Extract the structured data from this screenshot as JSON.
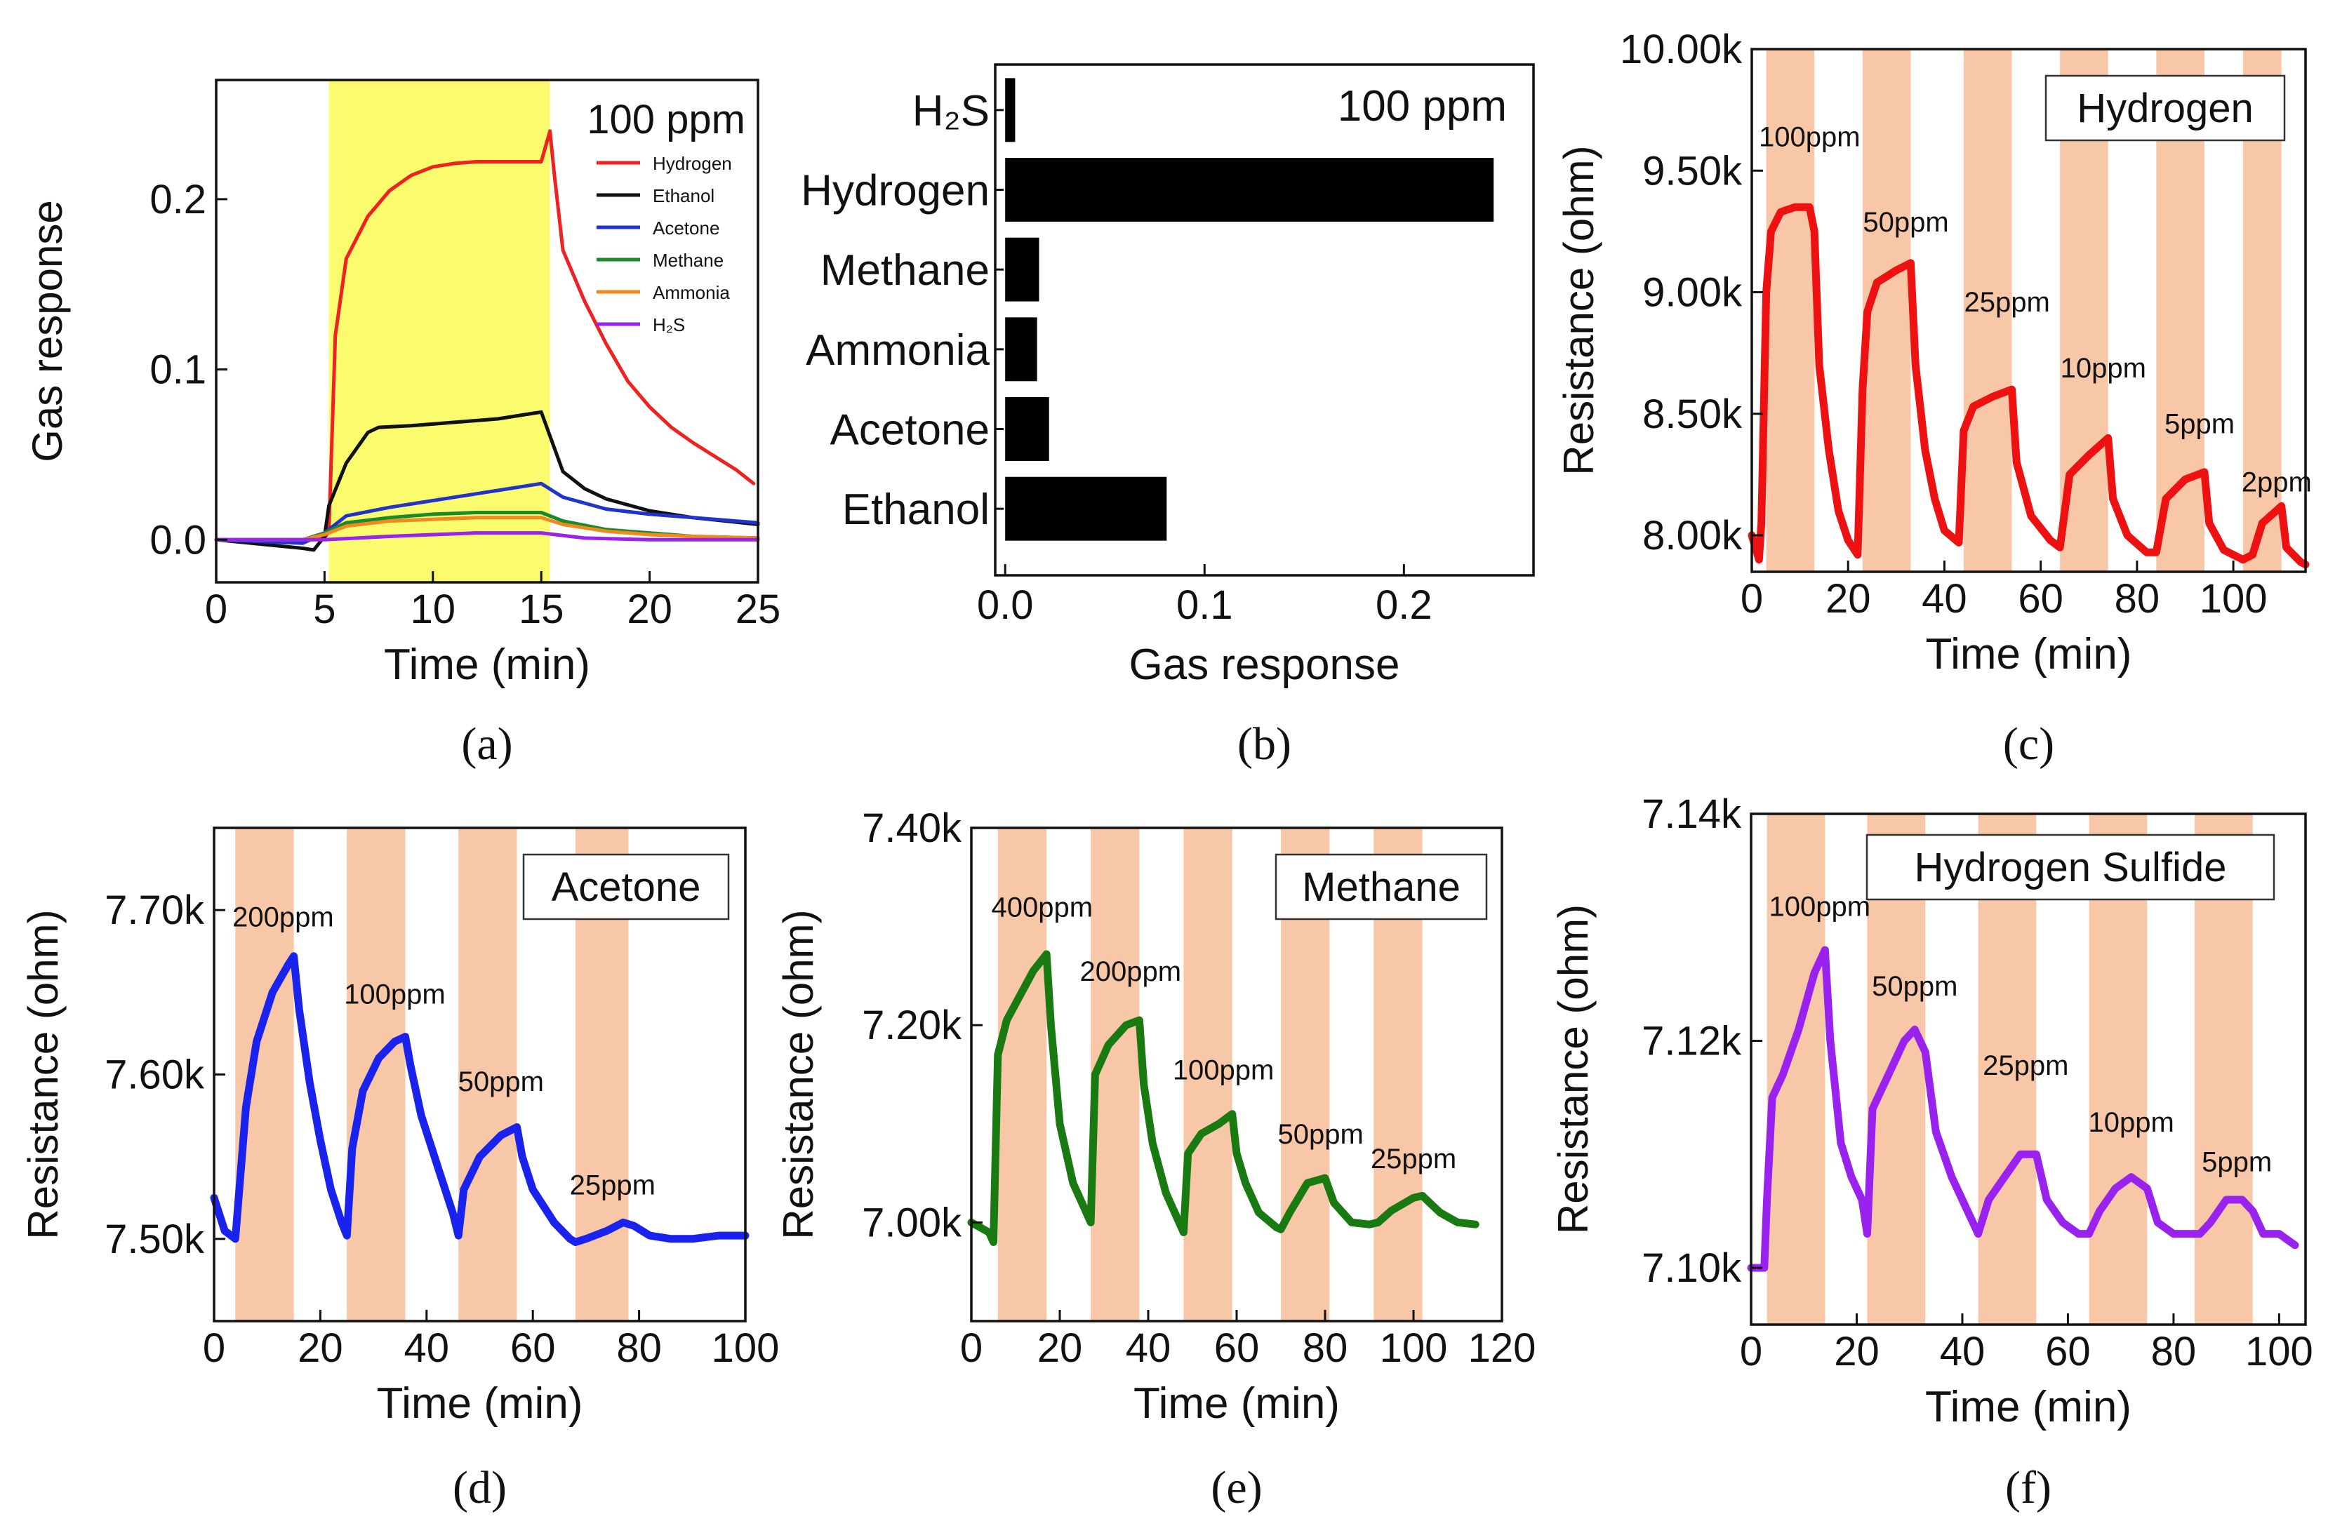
{
  "chart_data": [
    {
      "id": "a",
      "panel_label": "(a)",
      "type": "line",
      "title": "",
      "annotation": "100 ppm",
      "xlabel": "Time (min)",
      "ylabel": "Gas response",
      "xlim": [
        0,
        25
      ],
      "ylim": [
        -0.025,
        0.27
      ],
      "xticks": [
        0,
        5,
        10,
        15,
        20,
        25
      ],
      "xtick_labels": [
        "0",
        "5",
        "10",
        "15",
        "20",
        "25"
      ],
      "yticks": [
        0.0,
        0.1,
        0.2
      ],
      "ytick_labels": [
        "0.0",
        "0.1",
        "0.2"
      ],
      "highlight_region": {
        "x": [
          5.2,
          15.4
        ],
        "color": "#fbfb6e"
      },
      "legend_position": "top-right",
      "series": [
        {
          "name": "Hydrogen",
          "color": "#ee2222",
          "x": [
            0,
            4,
            5,
            5.2,
            5.5,
            6,
            7,
            8,
            9,
            10,
            11,
            12,
            13,
            14,
            15,
            15.4,
            15.6,
            16,
            17,
            18,
            19,
            20,
            21,
            22,
            23,
            24,
            24.8
          ],
          "y": [
            0.0,
            0.0,
            0.001,
            0.005,
            0.12,
            0.165,
            0.19,
            0.205,
            0.214,
            0.219,
            0.221,
            0.222,
            0.222,
            0.222,
            0.222,
            0.24,
            0.215,
            0.17,
            0.14,
            0.115,
            0.093,
            0.078,
            0.066,
            0.057,
            0.049,
            0.041,
            0.033
          ]
        },
        {
          "name": "Ethanol",
          "color": "#111111",
          "x": [
            0,
            4,
            4.5,
            5.0,
            5.2,
            6,
            7,
            7.5,
            9,
            11,
            13,
            15,
            15.2,
            16,
            17,
            18,
            20,
            22,
            25
          ],
          "y": [
            0.0,
            -0.005,
            -0.006,
            0.002,
            0.02,
            0.045,
            0.063,
            0.066,
            0.067,
            0.069,
            0.071,
            0.075,
            0.068,
            0.04,
            0.03,
            0.024,
            0.017,
            0.013,
            0.009
          ]
        },
        {
          "name": "Acetone",
          "color": "#2233cc",
          "x": [
            0,
            4,
            5,
            6,
            8,
            10,
            12,
            14,
            15,
            16,
            18,
            20,
            22,
            25
          ],
          "y": [
            0.0,
            -0.002,
            0.004,
            0.014,
            0.019,
            0.023,
            0.027,
            0.031,
            0.033,
            0.025,
            0.018,
            0.015,
            0.013,
            0.01
          ]
        },
        {
          "name": "Methane",
          "color": "#1a8a2a",
          "x": [
            0,
            4,
            5,
            6,
            8,
            10,
            12,
            15,
            16,
            18,
            20,
            22,
            25
          ],
          "y": [
            0.0,
            0.0,
            0.004,
            0.01,
            0.013,
            0.015,
            0.016,
            0.016,
            0.011,
            0.006,
            0.004,
            0.002,
            0.001
          ]
        },
        {
          "name": "Ammonia",
          "color": "#f08a1e",
          "x": [
            0,
            4,
            5,
            6,
            8,
            10,
            12,
            15,
            16,
            18,
            20,
            22,
            25
          ],
          "y": [
            0.0,
            0.0,
            0.003,
            0.008,
            0.011,
            0.012,
            0.013,
            0.013,
            0.009,
            0.005,
            0.003,
            0.002,
            0.001
          ]
        },
        {
          "name": "H₂S",
          "color": "#9922ee",
          "x": [
            0,
            5,
            8,
            12,
            15,
            17,
            20,
            25
          ],
          "y": [
            0.0,
            0.0,
            0.002,
            0.004,
            0.004,
            0.001,
            0.0,
            0.0
          ]
        }
      ]
    },
    {
      "id": "b",
      "panel_label": "(b)",
      "type": "bar",
      "orientation": "horizontal",
      "annotation": "100 ppm",
      "xlabel": "Gas response",
      "ylabel": "",
      "xlim": [
        -0.005,
        0.265
      ],
      "xticks": [
        0.0,
        0.1,
        0.2
      ],
      "xtick_labels": [
        "0.0",
        "0.1",
        "0.2"
      ],
      "categories": [
        "H₂S",
        "Hydrogen",
        "Methane",
        "Ammonia",
        "Acetone",
        "Ethanol"
      ],
      "values": [
        0.005,
        0.245,
        0.017,
        0.016,
        0.022,
        0.081
      ],
      "color": "#000000"
    },
    {
      "id": "c",
      "panel_label": "(c)",
      "type": "line",
      "annotation": "Hydrogen",
      "xlabel": "Time (min)",
      "ylabel": "Resistance (ohm)",
      "xlim": [
        0,
        115
      ],
      "ylim": [
        7850,
        10000
      ],
      "xticks": [
        0,
        20,
        40,
        60,
        80,
        100
      ],
      "xtick_labels": [
        "0",
        "20",
        "40",
        "60",
        "80",
        "100"
      ],
      "yticks": [
        8000,
        8500,
        9000,
        9500,
        10000
      ],
      "ytick_labels": [
        "8.00k",
        "8.50k",
        "9.00k",
        "9.50k",
        "10.00k"
      ],
      "color": "#ee1111",
      "exposure_windows": [
        [
          3,
          13
        ],
        [
          23,
          33
        ],
        [
          44,
          54
        ],
        [
          64,
          74
        ],
        [
          84,
          94
        ],
        [
          102,
          110
        ]
      ],
      "pulse_labels": [
        {
          "text": "100ppm",
          "x": 12,
          "y": 9600
        },
        {
          "text": "50ppm",
          "x": 32,
          "y": 9250
        },
        {
          "text": "25ppm",
          "x": 53,
          "y": 8920
        },
        {
          "text": "10ppm",
          "x": 73,
          "y": 8650
        },
        {
          "text": "5ppm",
          "x": 93,
          "y": 8420
        },
        {
          "text": "2ppm",
          "x": 109,
          "y": 8180
        }
      ],
      "x": [
        0,
        1.5,
        2,
        3,
        4,
        6,
        9,
        12,
        13,
        14,
        16,
        18,
        20,
        22,
        23,
        24,
        26,
        30,
        33,
        34,
        36,
        38,
        40,
        43,
        44,
        46,
        50,
        54,
        55,
        58,
        62,
        64,
        66,
        70,
        74,
        75,
        78,
        82,
        84,
        86,
        90,
        94,
        95,
        98,
        102,
        104,
        106,
        110,
        111,
        114,
        115
      ],
      "y": [
        8000,
        7900,
        8050,
        9000,
        9250,
        9330,
        9350,
        9350,
        9250,
        8700,
        8350,
        8100,
        7980,
        7920,
        8600,
        8920,
        9040,
        9090,
        9120,
        8700,
        8350,
        8150,
        8020,
        7970,
        8430,
        8530,
        8570,
        8600,
        8300,
        8080,
        7980,
        7950,
        8250,
        8330,
        8400,
        8150,
        8000,
        7930,
        7930,
        8150,
        8230,
        8260,
        8050,
        7940,
        7900,
        7920,
        8050,
        8120,
        7950,
        7890,
        7880
      ]
    },
    {
      "id": "d",
      "panel_label": "(d)",
      "type": "line",
      "annotation": "Acetone",
      "xlabel": "Time (min)",
      "ylabel": "Resistance (ohm)",
      "xlim": [
        0,
        100
      ],
      "ylim": [
        7450,
        7750
      ],
      "xticks": [
        0,
        20,
        40,
        60,
        80,
        100
      ],
      "xtick_labels": [
        "0",
        "20",
        "40",
        "60",
        "80",
        "100"
      ],
      "yticks": [
        7500,
        7600,
        7700
      ],
      "ytick_labels": [
        "7.50k",
        "7.60k",
        "7.70k"
      ],
      "color": "#1a22ee",
      "exposure_windows": [
        [
          4,
          15
        ],
        [
          25,
          36
        ],
        [
          46,
          57
        ],
        [
          68,
          78
        ]
      ],
      "pulse_labels": [
        {
          "text": "200ppm",
          "x": 13,
          "y": 7690
        },
        {
          "text": "100ppm",
          "x": 34,
          "y": 7643
        },
        {
          "text": "50ppm",
          "x": 54,
          "y": 7590
        },
        {
          "text": "25ppm",
          "x": 75,
          "y": 7527
        }
      ],
      "x": [
        0,
        2,
        4,
        6,
        8,
        11,
        14,
        15,
        16,
        18,
        20,
        22,
        24,
        25,
        26,
        28,
        31,
        34,
        36,
        37,
        39,
        42,
        45,
        46,
        47,
        50,
        54,
        57,
        58,
        60,
        64,
        67,
        68,
        70,
        74,
        77,
        79,
        82,
        86,
        90,
        95,
        100
      ],
      "y": [
        7525,
        7505,
        7500,
        7580,
        7620,
        7650,
        7667,
        7672,
        7640,
        7595,
        7560,
        7530,
        7510,
        7502,
        7555,
        7590,
        7610,
        7620,
        7623,
        7605,
        7575,
        7545,
        7515,
        7502,
        7530,
        7550,
        7563,
        7568,
        7550,
        7530,
        7510,
        7500,
        7498,
        7500,
        7505,
        7510,
        7508,
        7502,
        7500,
        7500,
        7502,
        7502
      ]
    },
    {
      "id": "e",
      "panel_label": "(e)",
      "type": "line",
      "annotation": "Methane",
      "xlabel": "Time (min)",
      "ylabel": "Resistance (ohm)",
      "xlim": [
        0,
        120
      ],
      "ylim": [
        6900,
        7400
      ],
      "xticks": [
        0,
        20,
        40,
        60,
        80,
        100,
        120
      ],
      "xtick_labels": [
        "0",
        "20",
        "40",
        "60",
        "80",
        "100",
        "120"
      ],
      "yticks": [
        7000,
        7200,
        7400
      ],
      "ytick_labels": [
        "7.00k",
        "7.20k",
        "7.40k"
      ],
      "color": "#1a7a12",
      "exposure_windows": [
        [
          6,
          17
        ],
        [
          27,
          38
        ],
        [
          48,
          59
        ],
        [
          70,
          81
        ],
        [
          91,
          102
        ]
      ],
      "pulse_labels": [
        {
          "text": "400ppm",
          "x": 16,
          "y": 7310
        },
        {
          "text": "200ppm",
          "x": 36,
          "y": 7245
        },
        {
          "text": "100ppm",
          "x": 57,
          "y": 7145
        },
        {
          "text": "50ppm",
          "x": 79,
          "y": 7080
        },
        {
          "text": "25ppm",
          "x": 100,
          "y": 7055
        }
      ],
      "x": [
        0,
        4,
        5,
        6,
        8,
        11,
        14,
        17,
        18,
        20,
        23,
        26,
        27,
        28,
        31,
        35,
        38,
        39,
        41,
        44,
        47,
        48,
        49,
        52,
        56,
        59,
        60,
        62,
        65,
        69,
        70,
        72,
        76,
        80,
        82,
        86,
        90,
        92,
        95,
        100,
        102,
        106,
        110,
        114
      ],
      "y": [
        7000,
        6990,
        6980,
        7170,
        7205,
        7230,
        7255,
        7272,
        7200,
        7100,
        7040,
        7010,
        7000,
        7150,
        7180,
        7200,
        7205,
        7140,
        7080,
        7030,
        7000,
        6990,
        7070,
        7090,
        7100,
        7110,
        7070,
        7040,
        7010,
        6995,
        6993,
        7010,
        7040,
        7045,
        7020,
        7000,
        6998,
        7000,
        7012,
        7025,
        7027,
        7010,
        7000,
        6998
      ]
    },
    {
      "id": "f",
      "panel_label": "(f)",
      "type": "line",
      "annotation": "Hydrogen Sulfide",
      "xlabel": "Time (min)",
      "ylabel": "Resistance (ohm)",
      "xlim": [
        0,
        105
      ],
      "ylim": [
        7095,
        7140
      ],
      "xticks": [
        0,
        20,
        40,
        60,
        80,
        100
      ],
      "xtick_labels": [
        "0",
        "20",
        "40",
        "60",
        "80",
        "100"
      ],
      "yticks": [
        7100,
        7120,
        7140
      ],
      "ytick_labels": [
        "7.10k",
        "7.12k",
        "7.14k"
      ],
      "color": "#9922ee",
      "exposure_windows": [
        [
          3,
          14
        ],
        [
          22,
          33
        ],
        [
          43,
          54
        ],
        [
          64,
          75
        ],
        [
          84,
          95
        ]
      ],
      "pulse_labels": [
        {
          "text": "100ppm",
          "x": 13,
          "y": 7131
        },
        {
          "text": "50ppm",
          "x": 31,
          "y": 7124
        },
        {
          "text": "25ppm",
          "x": 52,
          "y": 7117
        },
        {
          "text": "10ppm",
          "x": 72,
          "y": 7112
        },
        {
          "text": "5ppm",
          "x": 92,
          "y": 7108.5
        }
      ],
      "x": [
        0,
        2.5,
        3,
        4,
        6,
        9,
        12,
        14,
        15,
        17,
        19,
        21,
        22,
        23,
        26,
        29,
        31,
        33,
        35,
        38,
        41,
        43,
        45,
        48,
        51,
        54,
        56,
        59,
        62,
        64,
        66,
        69,
        72,
        75,
        77,
        80,
        83,
        85,
        87,
        90,
        93,
        95,
        97,
        100,
        103
      ],
      "y": [
        7100,
        7100,
        7106,
        7115,
        7117,
        7121,
        7126,
        7128,
        7120,
        7111,
        7108,
        7106,
        7103,
        7114,
        7117,
        7120,
        7121,
        7119,
        7112,
        7108,
        7105,
        7103,
        7106,
        7108,
        7110,
        7110,
        7106,
        7104,
        7103,
        7103,
        7105,
        7107,
        7108,
        7107,
        7104,
        7103,
        7103,
        7103,
        7104,
        7106,
        7106,
        7105,
        7103,
        7103,
        7102
      ]
    }
  ]
}
